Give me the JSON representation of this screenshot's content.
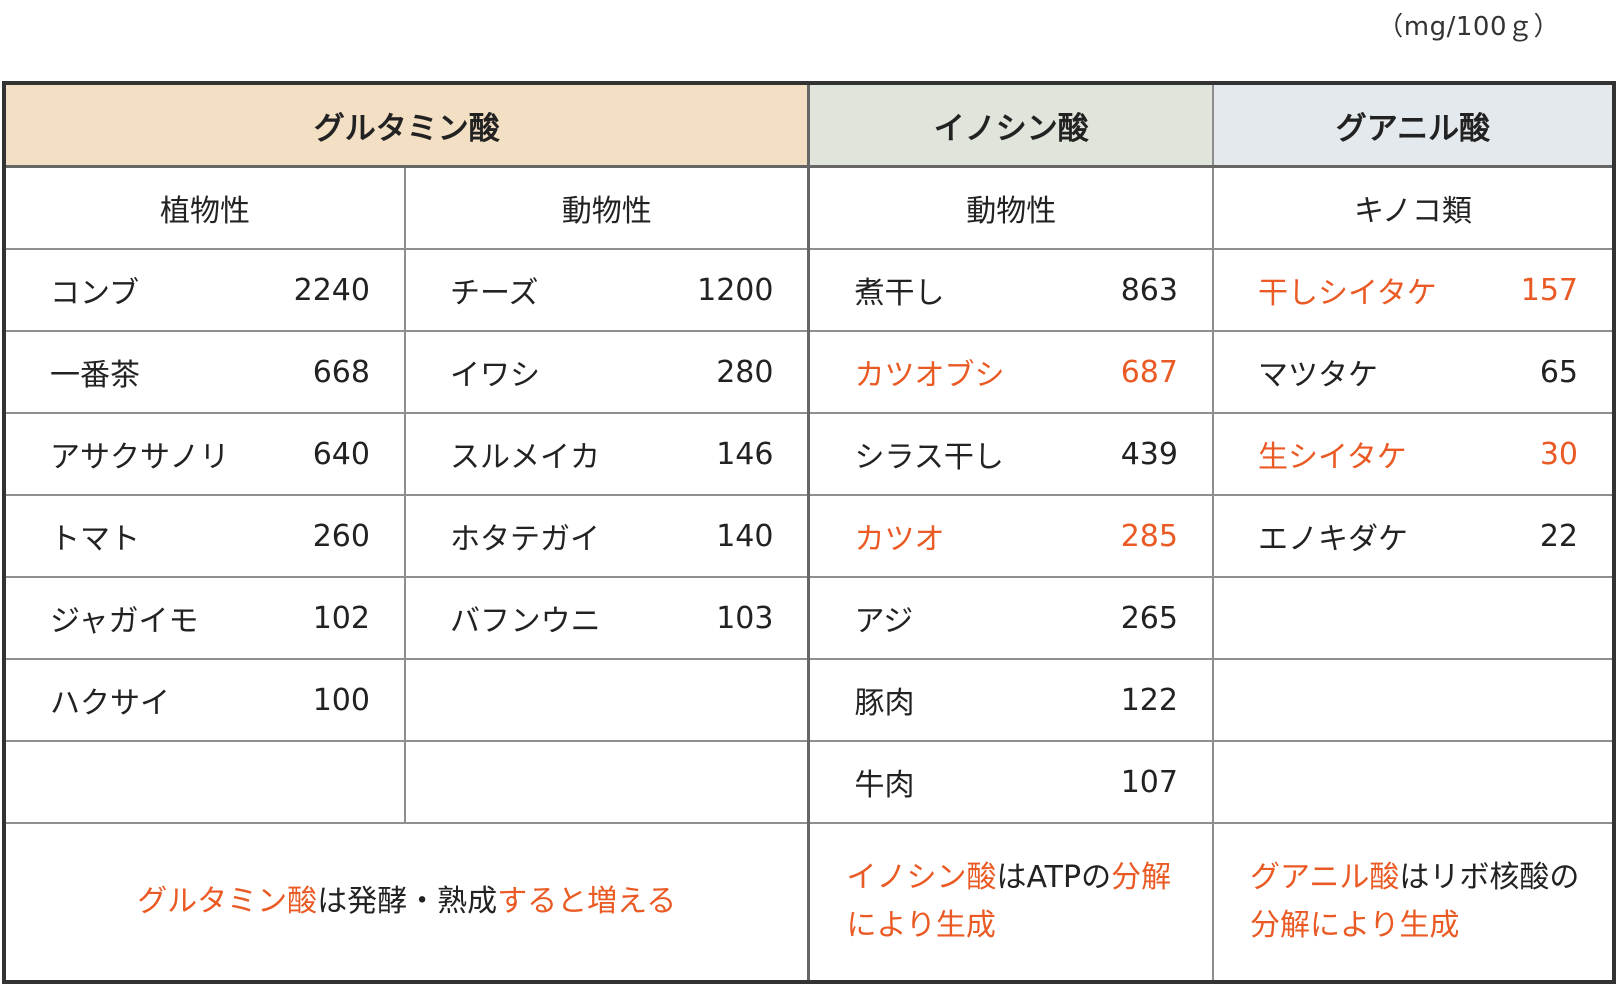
{
  "unit": "（mg/100ｇ）",
  "headers": {
    "glutamic": "グルタミン酸",
    "inosinic": "イノシン酸",
    "guanylic": "グアニル酸"
  },
  "subheaders": {
    "glu_plant": "植物性",
    "glu_animal": "動物性",
    "ino_animal": "動物性",
    "gua_mushroom": "キノコ類"
  },
  "rows": [
    {
      "c1": {
        "name": "コンブ",
        "value": "2240"
      },
      "c2": {
        "name": "チーズ",
        "value": "1200"
      },
      "c3": {
        "name": "煮干し",
        "value": "863"
      },
      "c4": {
        "name": "干しシイタケ",
        "value": "157"
      }
    },
    {
      "c1": {
        "name": "一番茶",
        "value": "668"
      },
      "c2": {
        "name": "イワシ",
        "value": "280"
      },
      "c3": {
        "name": "カツオブシ",
        "value": "687"
      },
      "c4": {
        "name": "マツタケ",
        "value": "65"
      }
    },
    {
      "c1": {
        "name": "アサクサノリ",
        "value": "640"
      },
      "c2": {
        "name": "スルメイカ",
        "value": "146"
      },
      "c3": {
        "name": "シラス干し",
        "value": "439"
      },
      "c4": {
        "name": "生シイタケ",
        "value": "30"
      }
    },
    {
      "c1": {
        "name": "トマト",
        "value": "260"
      },
      "c2": {
        "name": "ホタテガイ",
        "value": "140"
      },
      "c3": {
        "name": "カツオ",
        "value": "285"
      },
      "c4": {
        "name": "エノキダケ",
        "value": "22"
      }
    },
    {
      "c1": {
        "name": "ジャガイモ",
        "value": "102"
      },
      "c2": {
        "name": "バフンウニ",
        "value": "103"
      },
      "c3": {
        "name": "アジ",
        "value": "265"
      },
      "c4": {
        "name": "",
        "value": ""
      }
    },
    {
      "c1": {
        "name": "ハクサイ",
        "value": "100"
      },
      "c2": {
        "name": "",
        "value": ""
      },
      "c3": {
        "name": "豚肉",
        "value": "122"
      },
      "c4": {
        "name": "",
        "value": ""
      }
    },
    {
      "c1": {
        "name": "",
        "value": ""
      },
      "c2": {
        "name": "",
        "value": ""
      },
      "c3": {
        "name": "牛肉",
        "value": "107"
      },
      "c4": {
        "name": "",
        "value": ""
      }
    }
  ],
  "highlight_color": "#ea5a24",
  "header_colors": {
    "glutamic": "#f2dfc4",
    "inosinic": "#dfe5da",
    "guanylic": "#e3e9ec"
  },
  "notes": {
    "glutamic": {
      "p1": "グルタミン酸",
      "p2": "は発酵・熟成",
      "p3": "すると増える"
    },
    "inosinic": {
      "p1": "イノシン酸",
      "p2": "はATPの",
      "p3": "分解により生成"
    },
    "guanylic": {
      "p1": "グアニル酸",
      "p2": "はリボ核酸の",
      "p3": "分解により生成"
    }
  }
}
